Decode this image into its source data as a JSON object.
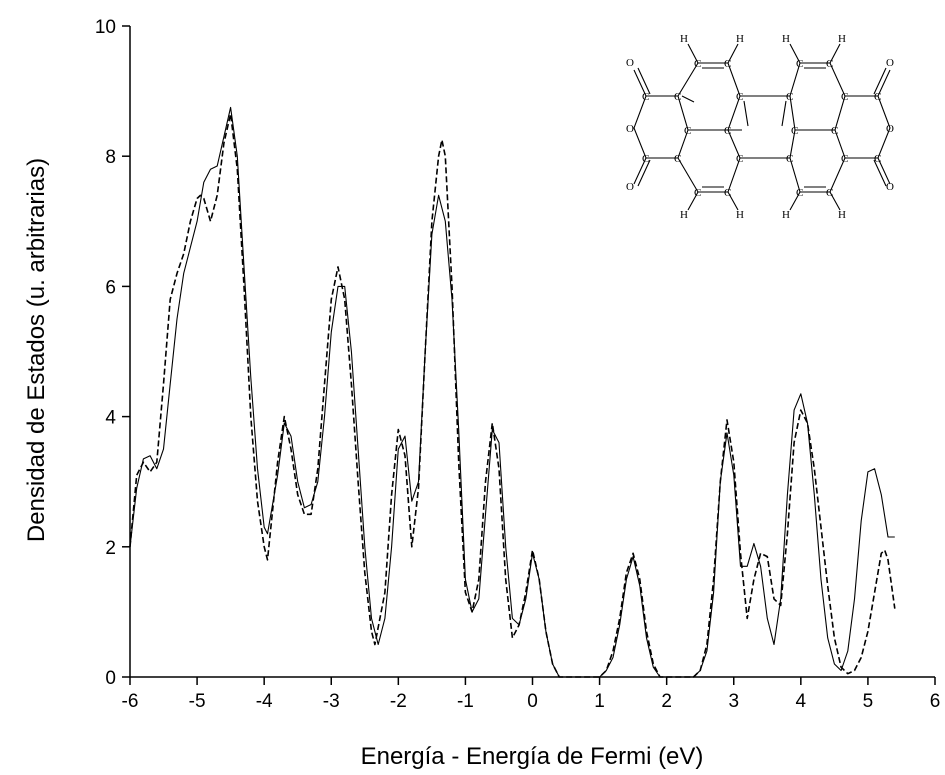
{
  "chart_data": {
    "type": "line",
    "title": "",
    "xlabel": "Energía - Energía de Fermi (eV)",
    "ylabel": "Densidad de Estados (u. arbitrarias)",
    "xlim": [
      -6,
      6
    ],
    "ylim": [
      0,
      10
    ],
    "xticks": [
      -6,
      -5,
      -4,
      -3,
      -2,
      -1,
      0,
      1,
      2,
      3,
      4,
      5,
      6
    ],
    "yticks": [
      0,
      2,
      4,
      6,
      8,
      10
    ],
    "grid": false,
    "legend": "none",
    "series": [
      {
        "style": "solid",
        "color": "#000000",
        "points": [
          [
            -6.0,
            2.0
          ],
          [
            -5.9,
            2.9
          ],
          [
            -5.8,
            3.35
          ],
          [
            -5.7,
            3.4
          ],
          [
            -5.6,
            3.2
          ],
          [
            -5.5,
            3.5
          ],
          [
            -5.4,
            4.5
          ],
          [
            -5.3,
            5.5
          ],
          [
            -5.2,
            6.2
          ],
          [
            -5.1,
            6.6
          ],
          [
            -5.0,
            7.0
          ],
          [
            -4.9,
            7.6
          ],
          [
            -4.8,
            7.8
          ],
          [
            -4.7,
            7.85
          ],
          [
            -4.6,
            8.3
          ],
          [
            -4.5,
            8.75
          ],
          [
            -4.4,
            8.0
          ],
          [
            -4.3,
            6.3
          ],
          [
            -4.2,
            4.6
          ],
          [
            -4.1,
            3.2
          ],
          [
            -4.0,
            2.3
          ],
          [
            -3.95,
            2.2
          ],
          [
            -3.8,
            3.1
          ],
          [
            -3.7,
            3.9
          ],
          [
            -3.6,
            3.7
          ],
          [
            -3.5,
            3.0
          ],
          [
            -3.4,
            2.6
          ],
          [
            -3.3,
            2.65
          ],
          [
            -3.2,
            3.0
          ],
          [
            -3.1,
            4.0
          ],
          [
            -3.0,
            5.3
          ],
          [
            -2.9,
            6.0
          ],
          [
            -2.8,
            6.0
          ],
          [
            -2.7,
            5.0
          ],
          [
            -2.6,
            3.5
          ],
          [
            -2.5,
            2.0
          ],
          [
            -2.4,
            0.9
          ],
          [
            -2.3,
            0.5
          ],
          [
            -2.2,
            0.9
          ],
          [
            -2.1,
            2.0
          ],
          [
            -2.0,
            3.5
          ],
          [
            -1.9,
            3.7
          ],
          [
            -1.8,
            2.7
          ],
          [
            -1.7,
            3.0
          ],
          [
            -1.6,
            5.0
          ],
          [
            -1.5,
            6.8
          ],
          [
            -1.4,
            7.4
          ],
          [
            -1.3,
            7.0
          ],
          [
            -1.2,
            5.8
          ],
          [
            -1.1,
            3.8
          ],
          [
            -1.0,
            1.5
          ],
          [
            -0.9,
            1.0
          ],
          [
            -0.8,
            1.2
          ],
          [
            -0.7,
            2.5
          ],
          [
            -0.6,
            3.8
          ],
          [
            -0.5,
            3.6
          ],
          [
            -0.4,
            2.0
          ],
          [
            -0.3,
            0.9
          ],
          [
            -0.2,
            0.8
          ],
          [
            -0.1,
            1.2
          ],
          [
            0.0,
            1.9
          ],
          [
            0.1,
            1.5
          ],
          [
            0.2,
            0.7
          ],
          [
            0.3,
            0.2
          ],
          [
            0.4,
            0.0
          ],
          [
            1.0,
            0.0
          ],
          [
            1.1,
            0.1
          ],
          [
            1.2,
            0.3
          ],
          [
            1.3,
            0.8
          ],
          [
            1.4,
            1.5
          ],
          [
            1.5,
            1.85
          ],
          [
            1.6,
            1.4
          ],
          [
            1.7,
            0.6
          ],
          [
            1.8,
            0.15
          ],
          [
            1.9,
            0.0
          ],
          [
            2.4,
            0.0
          ],
          [
            2.5,
            0.1
          ],
          [
            2.6,
            0.4
          ],
          [
            2.7,
            1.3
          ],
          [
            2.8,
            3.0
          ],
          [
            2.9,
            3.75
          ],
          [
            3.0,
            3.1
          ],
          [
            3.1,
            1.7
          ],
          [
            3.2,
            1.7
          ],
          [
            3.3,
            2.05
          ],
          [
            3.4,
            1.7
          ],
          [
            3.5,
            0.9
          ],
          [
            3.6,
            0.5
          ],
          [
            3.7,
            1.2
          ],
          [
            3.8,
            2.8
          ],
          [
            3.9,
            4.1
          ],
          [
            4.0,
            4.35
          ],
          [
            4.1,
            3.9
          ],
          [
            4.2,
            2.8
          ],
          [
            4.3,
            1.5
          ],
          [
            4.4,
            0.6
          ],
          [
            4.5,
            0.2
          ],
          [
            4.6,
            0.1
          ],
          [
            4.7,
            0.4
          ],
          [
            4.8,
            1.2
          ],
          [
            4.9,
            2.4
          ],
          [
            5.0,
            3.15
          ],
          [
            5.1,
            3.2
          ],
          [
            5.2,
            2.8
          ],
          [
            5.3,
            2.15
          ],
          [
            5.4,
            2.15
          ]
        ]
      },
      {
        "style": "dashed",
        "color": "#000000",
        "points": [
          [
            -6.0,
            2.0
          ],
          [
            -5.9,
            3.1
          ],
          [
            -5.8,
            3.3
          ],
          [
            -5.7,
            3.15
          ],
          [
            -5.6,
            3.3
          ],
          [
            -5.5,
            4.5
          ],
          [
            -5.4,
            5.8
          ],
          [
            -5.3,
            6.2
          ],
          [
            -5.2,
            6.5
          ],
          [
            -5.1,
            7.0
          ],
          [
            -5.0,
            7.35
          ],
          [
            -4.95,
            7.4
          ],
          [
            -4.9,
            7.35
          ],
          [
            -4.8,
            7.0
          ],
          [
            -4.7,
            7.4
          ],
          [
            -4.6,
            8.2
          ],
          [
            -4.5,
            8.65
          ],
          [
            -4.4,
            7.8
          ],
          [
            -4.3,
            6.0
          ],
          [
            -4.2,
            4.0
          ],
          [
            -4.1,
            2.7
          ],
          [
            -4.0,
            2.0
          ],
          [
            -3.95,
            1.8
          ],
          [
            -3.8,
            3.3
          ],
          [
            -3.7,
            4.0
          ],
          [
            -3.6,
            3.5
          ],
          [
            -3.5,
            2.8
          ],
          [
            -3.4,
            2.5
          ],
          [
            -3.3,
            2.5
          ],
          [
            -3.2,
            3.2
          ],
          [
            -3.1,
            4.5
          ],
          [
            -3.0,
            5.8
          ],
          [
            -2.9,
            6.3
          ],
          [
            -2.8,
            5.8
          ],
          [
            -2.7,
            4.5
          ],
          [
            -2.6,
            3.0
          ],
          [
            -2.5,
            1.6
          ],
          [
            -2.4,
            0.7
          ],
          [
            -2.35,
            0.5
          ],
          [
            -2.2,
            1.3
          ],
          [
            -2.1,
            2.8
          ],
          [
            -2.0,
            3.8
          ],
          [
            -1.9,
            3.4
          ],
          [
            -1.8,
            2.0
          ],
          [
            -1.7,
            2.9
          ],
          [
            -1.6,
            5.0
          ],
          [
            -1.5,
            7.0
          ],
          [
            -1.4,
            8.0
          ],
          [
            -1.35,
            8.25
          ],
          [
            -1.3,
            8.0
          ],
          [
            -1.2,
            6.0
          ],
          [
            -1.1,
            3.3
          ],
          [
            -1.0,
            1.3
          ],
          [
            -0.9,
            1.0
          ],
          [
            -0.8,
            1.5
          ],
          [
            -0.7,
            3.0
          ],
          [
            -0.6,
            3.9
          ],
          [
            -0.5,
            3.2
          ],
          [
            -0.4,
            1.5
          ],
          [
            -0.3,
            0.6
          ],
          [
            -0.2,
            0.8
          ],
          [
            -0.1,
            1.3
          ],
          [
            0.0,
            1.95
          ],
          [
            0.1,
            1.5
          ],
          [
            0.2,
            0.7
          ],
          [
            0.3,
            0.2
          ],
          [
            0.4,
            0.0
          ],
          [
            1.0,
            0.0
          ],
          [
            1.1,
            0.1
          ],
          [
            1.2,
            0.4
          ],
          [
            1.3,
            0.9
          ],
          [
            1.4,
            1.6
          ],
          [
            1.5,
            1.9
          ],
          [
            1.6,
            1.5
          ],
          [
            1.7,
            0.7
          ],
          [
            1.8,
            0.2
          ],
          [
            1.9,
            0.0
          ],
          [
            2.4,
            0.0
          ],
          [
            2.5,
            0.1
          ],
          [
            2.6,
            0.5
          ],
          [
            2.7,
            1.5
          ],
          [
            2.8,
            3.0
          ],
          [
            2.9,
            3.95
          ],
          [
            3.0,
            3.3
          ],
          [
            3.1,
            1.9
          ],
          [
            3.2,
            0.9
          ],
          [
            3.3,
            1.5
          ],
          [
            3.4,
            1.9
          ],
          [
            3.5,
            1.85
          ],
          [
            3.6,
            1.2
          ],
          [
            3.7,
            1.1
          ],
          [
            3.8,
            2.2
          ],
          [
            3.9,
            3.6
          ],
          [
            4.0,
            4.1
          ],
          [
            4.1,
            3.9
          ],
          [
            4.2,
            3.2
          ],
          [
            4.3,
            2.3
          ],
          [
            4.4,
            1.4
          ],
          [
            4.5,
            0.6
          ],
          [
            4.6,
            0.15
          ],
          [
            4.7,
            0.05
          ],
          [
            4.8,
            0.1
          ],
          [
            4.9,
            0.3
          ],
          [
            5.0,
            0.7
          ],
          [
            5.1,
            1.3
          ],
          [
            5.2,
            1.9
          ],
          [
            5.25,
            1.95
          ],
          [
            5.3,
            1.8
          ],
          [
            5.4,
            1.05
          ]
        ]
      }
    ]
  },
  "inset_structure": {
    "atoms": {
      "hydrogen": "H",
      "carbon": "C",
      "oxygen": "O"
    },
    "colors": {
      "oxygen": "#d40000",
      "carbon": "#000000",
      "hydrogen": "#000000",
      "bond": "#000000"
    }
  }
}
